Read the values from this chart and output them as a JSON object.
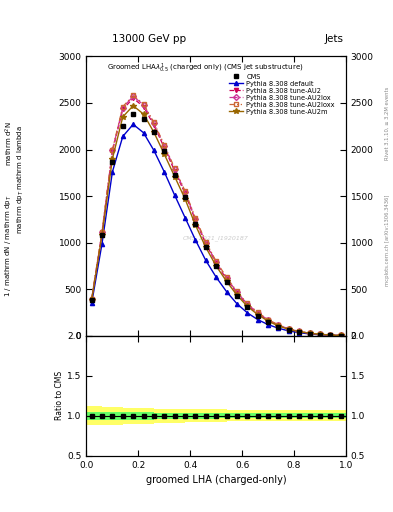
{
  "title_top": "13000 GeV pp",
  "title_right": "Jets",
  "xlabel": "groomed LHA (charged-only)",
  "ylabel_ratio": "Ratio to CMS",
  "watermark": "CMS_2021_I1920187",
  "side_text": "mcplots.cern.ch [arXiv:1306.3436]",
  "side_text2": "Rivet 3.1.10, ≥ 3.2M events",
  "x_data": [
    0.02,
    0.06,
    0.1,
    0.14,
    0.18,
    0.22,
    0.26,
    0.3,
    0.34,
    0.38,
    0.42,
    0.46,
    0.5,
    0.54,
    0.58,
    0.62,
    0.66,
    0.7,
    0.74,
    0.78,
    0.82,
    0.86,
    0.9,
    0.94,
    0.98
  ],
  "cms_data": [
    380,
    1080,
    1870,
    2250,
    2380,
    2330,
    2190,
    1980,
    1730,
    1490,
    1200,
    950,
    750,
    580,
    430,
    310,
    215,
    148,
    98,
    63,
    38,
    23,
    14,
    7,
    3
  ],
  "pythia_default": [
    350,
    990,
    1760,
    2140,
    2270,
    2180,
    1990,
    1760,
    1510,
    1270,
    1030,
    810,
    630,
    475,
    345,
    248,
    175,
    121,
    82,
    53,
    34,
    21,
    12,
    7,
    3
  ],
  "pythia_au2": [
    390,
    1100,
    1980,
    2430,
    2550,
    2460,
    2260,
    2020,
    1770,
    1530,
    1240,
    990,
    780,
    610,
    460,
    335,
    242,
    167,
    113,
    73,
    46,
    29,
    17,
    10,
    4
  ],
  "pythia_au2lox": [
    395,
    1110,
    1990,
    2450,
    2570,
    2480,
    2280,
    2040,
    1790,
    1545,
    1255,
    1000,
    790,
    620,
    470,
    342,
    248,
    171,
    116,
    75,
    48,
    30,
    18,
    10,
    4.5
  ],
  "pythia_au2loxx": [
    400,
    1120,
    2000,
    2460,
    2580,
    2490,
    2290,
    2050,
    1800,
    1555,
    1265,
    1010,
    800,
    630,
    477,
    348,
    253,
    174,
    119,
    77,
    49,
    31,
    19,
    11,
    5
  ],
  "pythia_au2m": [
    385,
    1080,
    1900,
    2350,
    2470,
    2380,
    2185,
    1950,
    1710,
    1470,
    1190,
    950,
    750,
    585,
    438,
    318,
    229,
    158,
    107,
    69,
    44,
    28,
    16,
    9,
    4
  ],
  "ratio_green_lo": [
    0.95,
    0.95,
    0.95,
    0.95,
    0.95,
    0.95,
    0.96,
    0.96,
    0.96,
    0.96,
    0.96,
    0.96,
    0.97,
    0.97,
    0.97,
    0.97,
    0.97,
    0.97,
    0.97,
    0.97,
    0.97,
    0.97,
    0.97,
    0.97,
    0.97
  ],
  "ratio_green_hi": [
    1.05,
    1.05,
    1.05,
    1.05,
    1.05,
    1.05,
    1.04,
    1.04,
    1.04,
    1.04,
    1.04,
    1.04,
    1.03,
    1.03,
    1.03,
    1.03,
    1.03,
    1.03,
    1.03,
    1.03,
    1.03,
    1.03,
    1.03,
    1.03,
    1.03
  ],
  "ratio_yellow_lo": [
    0.88,
    0.89,
    0.89,
    0.9,
    0.9,
    0.9,
    0.91,
    0.91,
    0.91,
    0.92,
    0.92,
    0.92,
    0.92,
    0.93,
    0.93,
    0.93,
    0.93,
    0.93,
    0.93,
    0.93,
    0.93,
    0.93,
    0.93,
    0.93,
    0.93
  ],
  "ratio_yellow_hi": [
    1.12,
    1.11,
    1.11,
    1.1,
    1.1,
    1.1,
    1.09,
    1.09,
    1.09,
    1.08,
    1.08,
    1.08,
    1.08,
    1.07,
    1.07,
    1.07,
    1.07,
    1.07,
    1.07,
    1.07,
    1.07,
    1.07,
    1.07,
    1.07,
    1.07
  ],
  "color_default": "#0000cc",
  "color_au2": "#cc0055",
  "color_au2lox": "#cc3399",
  "color_au2loxx": "#cc6633",
  "color_au2m": "#996600",
  "ylim_main": [
    0,
    3000
  ],
  "ylim_ratio": [
    0.5,
    2.0
  ],
  "yticks_main": [
    0,
    500,
    1000,
    1500,
    2000,
    2500,
    3000
  ],
  "yticks_ratio": [
    0.5,
    1.0,
    1.5,
    2.0
  ],
  "ylabel_main_lines": [
    "mathrm d$^2$N",
    "mathrm dp$_\\mathregular{T}$ mathrm d lambda",
    "",
    "1 / mathrm dN / mathrm dp$_\\mathregular{T}$"
  ]
}
